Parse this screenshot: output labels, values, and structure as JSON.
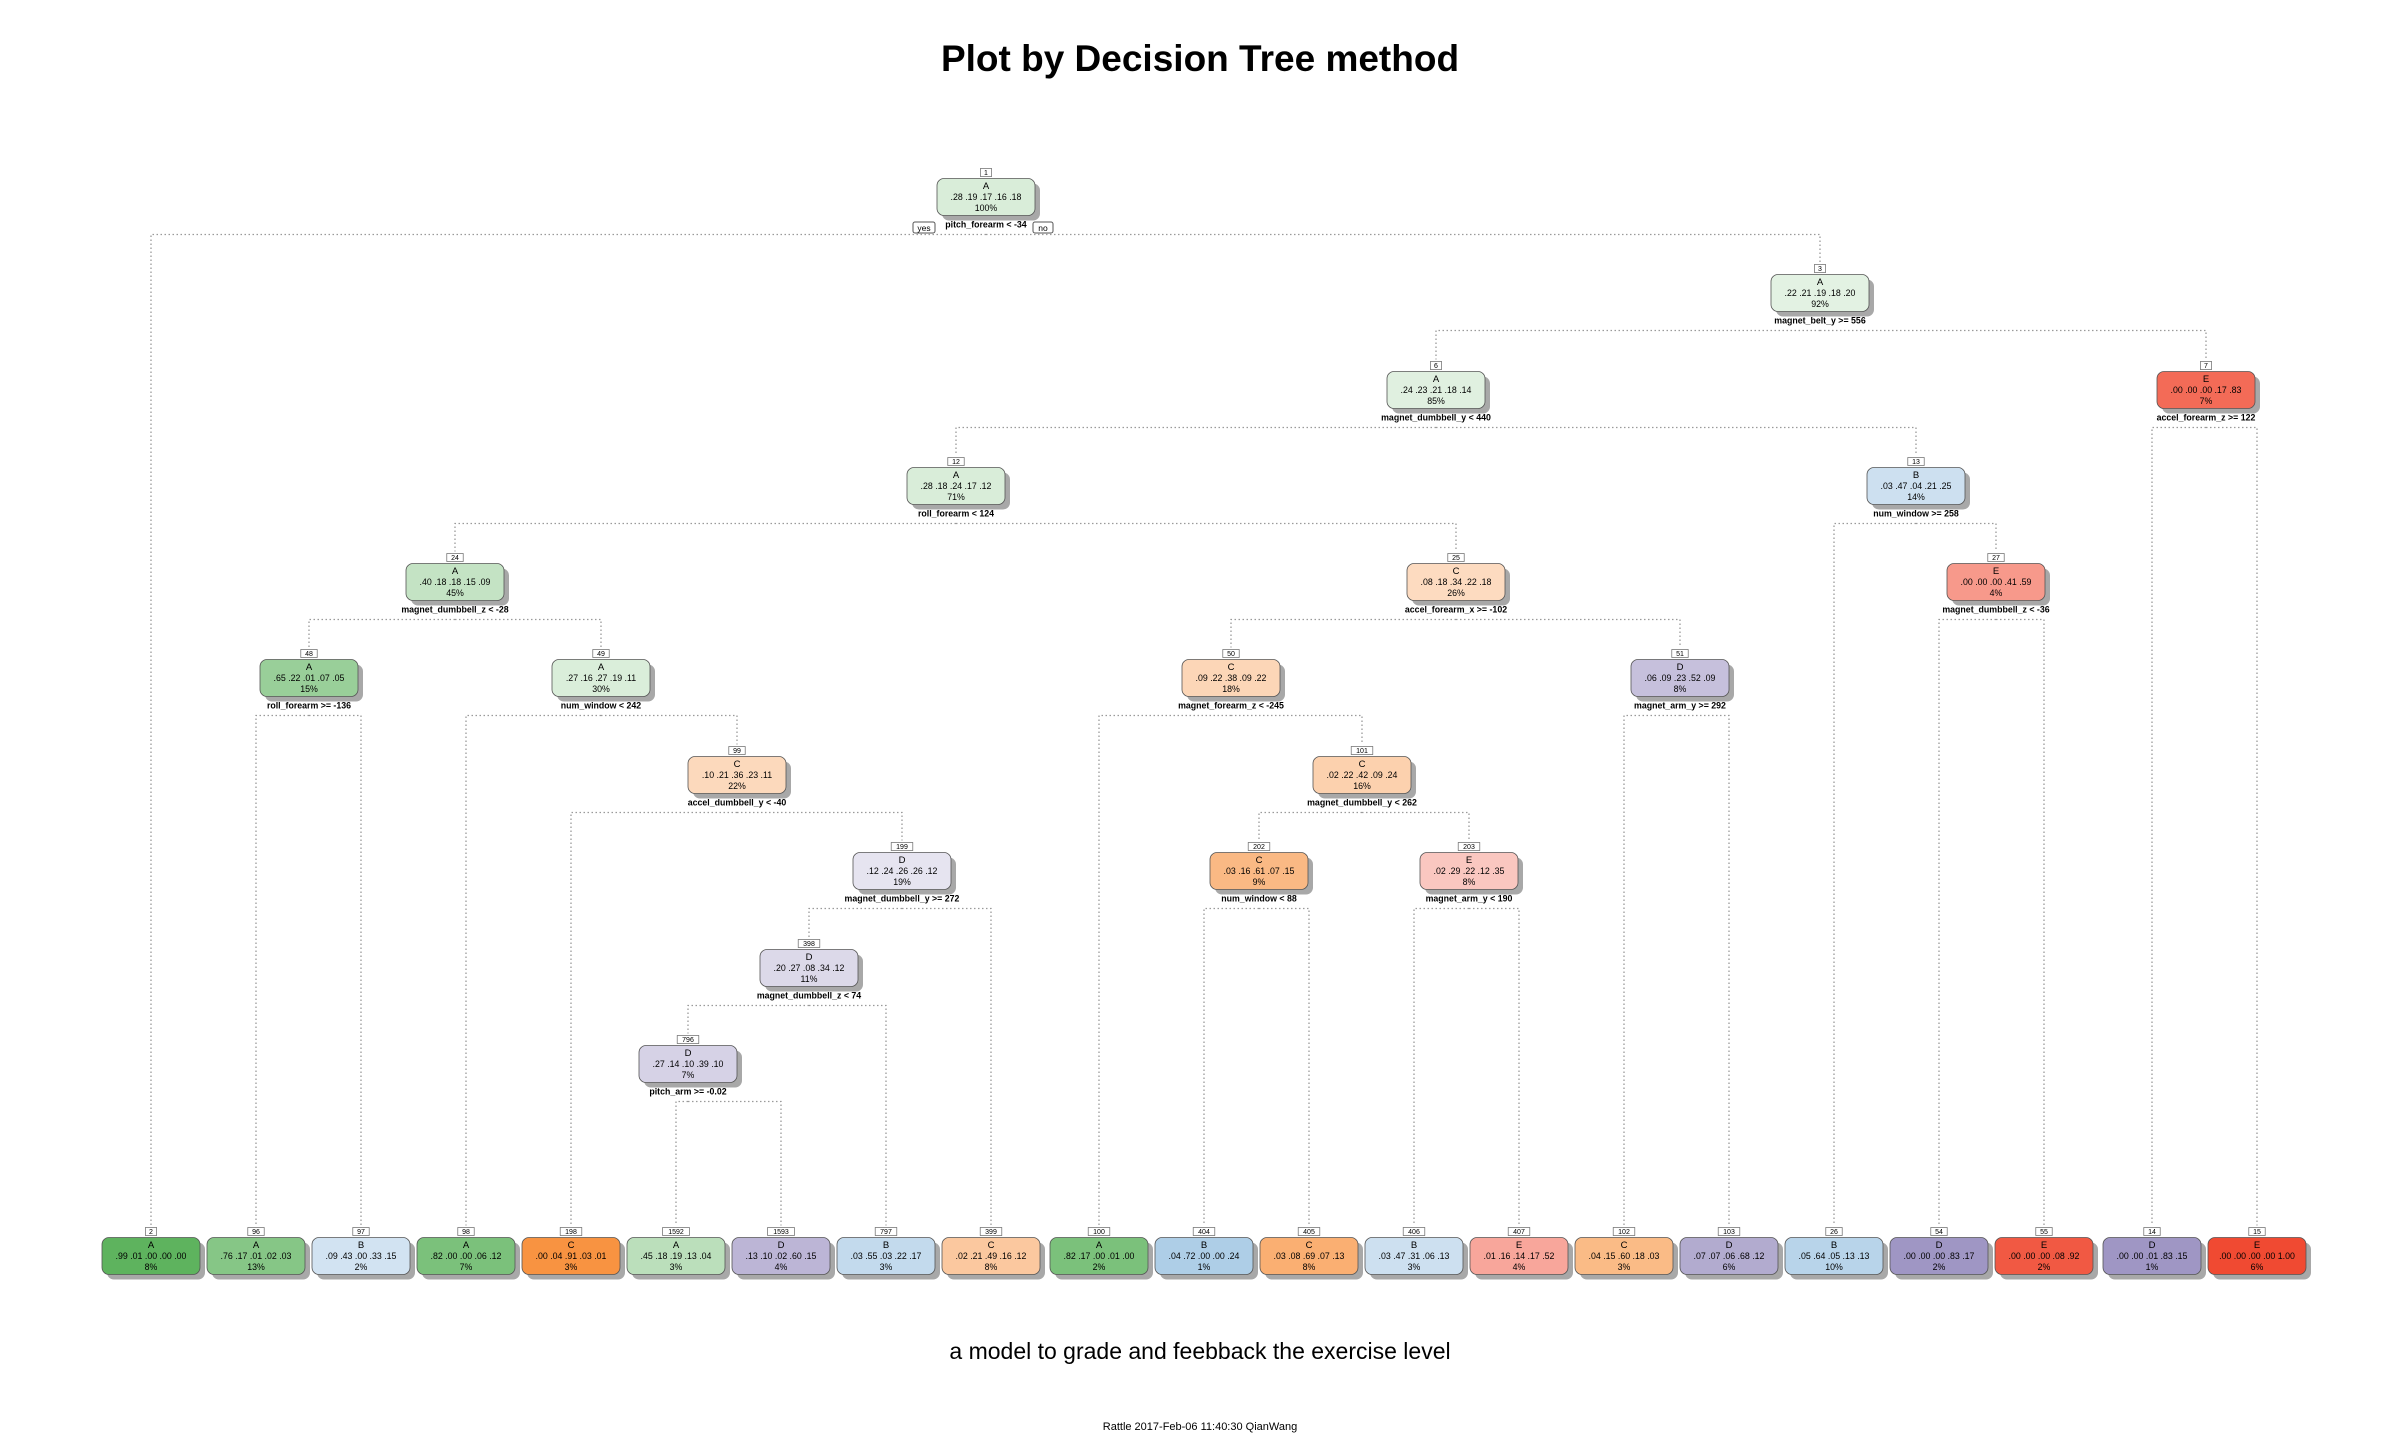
{
  "header": {
    "title": "Plot by Decision Tree method"
  },
  "caption": {
    "subtitle": "a model to grade and feebback the exercise level"
  },
  "footer": {
    "text": "Rattle 2017-Feb-06 11:40:30 QianWang"
  },
  "legend": {
    "yes": "yes",
    "no": "no"
  },
  "colors": {
    "A": "#5cb25c",
    "B": "#8cb9dd",
    "C": "#f7882d",
    "D": "#8a7fb7",
    "E": "#f04a32",
    "edge": "#9a9a9a",
    "shadow": "#a8a8a8"
  },
  "nodes": [
    {
      "id": "1",
      "cls": "A",
      "probs": ".28 .19 .17 .16 .18",
      "pct": "100%",
      "split": "pitch_forearm < -34"
    },
    {
      "id": "3",
      "cls": "A",
      "probs": ".22 .21 .19 .18 .20",
      "pct": "92%",
      "split": "magnet_belt_y >= 556"
    },
    {
      "id": "6",
      "cls": "A",
      "probs": ".24 .23 .21 .18 .14",
      "pct": "85%",
      "split": "magnet_dumbbell_y < 440"
    },
    {
      "id": "7",
      "cls": "E",
      "probs": ".00 .00 .00 .17 .83",
      "pct": "7%",
      "split": "accel_forearm_z >= 122"
    },
    {
      "id": "12",
      "cls": "A",
      "probs": ".28 .18 .24 .17 .12",
      "pct": "71%",
      "split": "roll_forearm < 124"
    },
    {
      "id": "13",
      "cls": "B",
      "probs": ".03 .47 .04 .21 .25",
      "pct": "14%",
      "split": "num_window >= 258"
    },
    {
      "id": "24",
      "cls": "A",
      "probs": ".40 .18 .18 .15 .09",
      "pct": "45%",
      "split": "magnet_dumbbell_z < -28"
    },
    {
      "id": "25",
      "cls": "C",
      "probs": ".08 .18 .34 .22 .18",
      "pct": "26%",
      "split": "accel_forearm_x >= -102"
    },
    {
      "id": "27",
      "cls": "E",
      "probs": ".00 .00 .00 .41 .59",
      "pct": "4%",
      "split": "magnet_dumbbell_z < -36"
    },
    {
      "id": "48",
      "cls": "A",
      "probs": ".65 .22 .01 .07 .05",
      "pct": "15%",
      "split": "roll_forearm >= -136"
    },
    {
      "id": "49",
      "cls": "A",
      "probs": ".27 .16 .27 .19 .11",
      "pct": "30%",
      "split": "num_window < 242"
    },
    {
      "id": "50",
      "cls": "C",
      "probs": ".09 .22 .38 .09 .22",
      "pct": "18%",
      "split": "magnet_forearm_z < -245"
    },
    {
      "id": "51",
      "cls": "D",
      "probs": ".06 .09 .23 .52 .09",
      "pct": "8%",
      "split": "magnet_arm_y >= 292"
    },
    {
      "id": "99",
      "cls": "C",
      "probs": ".10 .21 .36 .23 .11",
      "pct": "22%",
      "split": "accel_dumbbell_y < -40"
    },
    {
      "id": "101",
      "cls": "C",
      "probs": ".02 .22 .42 .09 .24",
      "pct": "16%",
      "split": "magnet_dumbbell_y < 262"
    },
    {
      "id": "199",
      "cls": "D",
      "probs": ".12 .24 .26 .26 .12",
      "pct": "19%",
      "split": "magnet_dumbbell_y >= 272"
    },
    {
      "id": "202",
      "cls": "C",
      "probs": ".03 .16 .61 .07 .15",
      "pct": "9%",
      "split": "num_window < 88"
    },
    {
      "id": "203",
      "cls": "E",
      "probs": ".02 .29 .22 .12 .35",
      "pct": "8%",
      "split": "magnet_arm_y < 190"
    },
    {
      "id": "398",
      "cls": "D",
      "probs": ".20 .27 .08 .34 .12",
      "pct": "11%",
      "split": "magnet_dumbbell_z < 74"
    },
    {
      "id": "796",
      "cls": "D",
      "probs": ".27 .14 .10 .39 .10",
      "pct": "7%",
      "split": "pitch_arm >= -0.02"
    },
    {
      "id": "2",
      "cls": "A",
      "probs": ".99 .01 .00 .00 .00",
      "pct": "8%"
    },
    {
      "id": "96",
      "cls": "A",
      "probs": ".76 .17 .01 .02 .03",
      "pct": "13%"
    },
    {
      "id": "97",
      "cls": "B",
      "probs": ".09 .43 .00 .33 .15",
      "pct": "2%"
    },
    {
      "id": "98",
      "cls": "A",
      "probs": ".82 .00 .00 .06 .12",
      "pct": "7%"
    },
    {
      "id": "198",
      "cls": "C",
      "probs": ".00 .04 .91 .03 .01",
      "pct": "3%"
    },
    {
      "id": "1592",
      "cls": "A",
      "probs": ".45 .18 .19 .13 .04",
      "pct": "3%"
    },
    {
      "id": "1593",
      "cls": "D",
      "probs": ".13 .10 .02 .60 .15",
      "pct": "4%"
    },
    {
      "id": "797",
      "cls": "B",
      "probs": ".03 .55 .03 .22 .17",
      "pct": "3%"
    },
    {
      "id": "399",
      "cls": "C",
      "probs": ".02 .21 .49 .16 .12",
      "pct": "8%"
    },
    {
      "id": "100",
      "cls": "A",
      "probs": ".82 .17 .00 .01 .00",
      "pct": "2%"
    },
    {
      "id": "404",
      "cls": "B",
      "probs": ".04 .72 .00 .00 .24",
      "pct": "1%"
    },
    {
      "id": "405",
      "cls": "C",
      "probs": ".03 .08 .69 .07 .13",
      "pct": "8%"
    },
    {
      "id": "406",
      "cls": "B",
      "probs": ".03 .47 .31 .06 .13",
      "pct": "3%"
    },
    {
      "id": "407",
      "cls": "E",
      "probs": ".01 .16 .14 .17 .52",
      "pct": "4%"
    },
    {
      "id": "102",
      "cls": "C",
      "probs": ".04 .15 .60 .18 .03",
      "pct": "3%"
    },
    {
      "id": "103",
      "cls": "D",
      "probs": ".07 .07 .06 .68 .12",
      "pct": "6%"
    },
    {
      "id": "26",
      "cls": "B",
      "probs": ".05 .64 .05 .13 .13",
      "pct": "10%"
    },
    {
      "id": "54",
      "cls": "D",
      "probs": ".00 .00 .00 .83 .17",
      "pct": "2%"
    },
    {
      "id": "55",
      "cls": "E",
      "probs": ".00 .00 .00 .08 .92",
      "pct": "2%"
    },
    {
      "id": "14",
      "cls": "D",
      "probs": ".00 .00 .01 .83 .15",
      "pct": "1%"
    },
    {
      "id": "15",
      "cls": "E",
      "probs": ".00 .00 .00 .00 1.00",
      "pct": "6%"
    }
  ],
  "edges": [
    [
      "1",
      "2"
    ],
    [
      "1",
      "3"
    ],
    [
      "3",
      "6"
    ],
    [
      "3",
      "7"
    ],
    [
      "6",
      "12"
    ],
    [
      "6",
      "13"
    ],
    [
      "7",
      "14"
    ],
    [
      "7",
      "15"
    ],
    [
      "12",
      "24"
    ],
    [
      "12",
      "25"
    ],
    [
      "13",
      "26"
    ],
    [
      "13",
      "27"
    ],
    [
      "24",
      "48"
    ],
    [
      "24",
      "49"
    ],
    [
      "25",
      "50"
    ],
    [
      "25",
      "51"
    ],
    [
      "27",
      "54"
    ],
    [
      "27",
      "55"
    ],
    [
      "48",
      "96"
    ],
    [
      "48",
      "97"
    ],
    [
      "49",
      "98"
    ],
    [
      "49",
      "99"
    ],
    [
      "50",
      "100"
    ],
    [
      "50",
      "101"
    ],
    [
      "51",
      "102"
    ],
    [
      "51",
      "103"
    ],
    [
      "99",
      "198"
    ],
    [
      "99",
      "199"
    ],
    [
      "101",
      "202"
    ],
    [
      "101",
      "203"
    ],
    [
      "199",
      "398"
    ],
    [
      "199",
      "399"
    ],
    [
      "202",
      "404"
    ],
    [
      "202",
      "405"
    ],
    [
      "203",
      "406"
    ],
    [
      "203",
      "407"
    ],
    [
      "398",
      "796"
    ],
    [
      "398",
      "797"
    ],
    [
      "796",
      "1592"
    ],
    [
      "796",
      "1593"
    ]
  ]
}
